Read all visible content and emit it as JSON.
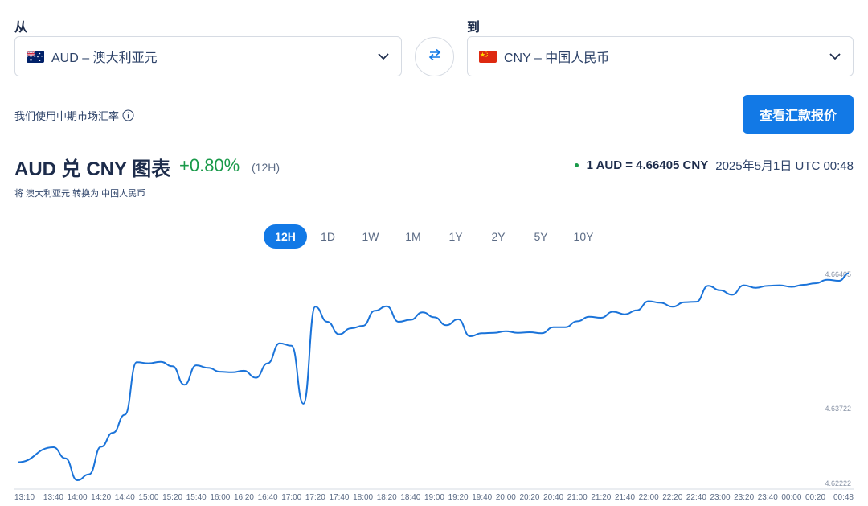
{
  "from": {
    "label": "从",
    "value": "AUD – 澳大利亚元"
  },
  "to": {
    "label": "到",
    "value": "CNY – 中国人民币"
  },
  "disclaimer": "我们使用中期市场汇率",
  "cta_label": "查看汇款报价",
  "chart_header": {
    "title": "AUD 兑 CNY 图表",
    "change": "+0.80%",
    "period": "(12H)",
    "subtitle": "将 澳大利亚元 转换为 中国人民币",
    "rate": "1 AUD = 4.66405 CNY",
    "timestamp": "2025年5月1日 UTC 00:48"
  },
  "ranges": [
    "12H",
    "1D",
    "1W",
    "1M",
    "1Y",
    "2Y",
    "5Y",
    "10Y"
  ],
  "active_range": "12H",
  "colors": {
    "accent": "#1279e6",
    "positive": "#1a9a4a",
    "line": "#1a73d9"
  },
  "chart_data": {
    "type": "line",
    "ylim": [
      4.62222,
      4.66405
    ],
    "yticks": [
      "4.66405",
      "4.63722",
      "4.62222"
    ],
    "xticks": [
      "13:10",
      "13:40",
      "14:00",
      "14:20",
      "14:40",
      "15:00",
      "15:20",
      "15:40",
      "16:00",
      "16:20",
      "16:40",
      "17:00",
      "17:20",
      "17:40",
      "18:00",
      "18:20",
      "18:40",
      "19:00",
      "19:20",
      "19:40",
      "20:00",
      "20:20",
      "20:40",
      "21:00",
      "21:20",
      "21:40",
      "22:00",
      "22:20",
      "22:40",
      "23:00",
      "23:20",
      "23:40",
      "00:00",
      "00:20",
      "00:48"
    ],
    "series": [
      {
        "x": [
          "13:10",
          "13:40",
          "13:50",
          "14:00",
          "14:10",
          "14:20",
          "14:30",
          "14:40",
          "14:50",
          "15:00",
          "15:10",
          "15:20",
          "15:30",
          "15:40",
          "15:50",
          "16:00",
          "16:10",
          "16:20",
          "16:30",
          "16:40",
          "16:50",
          "17:00",
          "17:10",
          "17:20",
          "17:30",
          "17:40",
          "17:50",
          "18:00",
          "18:10",
          "18:20",
          "18:30",
          "18:40",
          "18:50",
          "19:00",
          "19:10",
          "19:20",
          "19:30",
          "19:40",
          "19:50",
          "20:00",
          "20:10",
          "20:20",
          "20:30",
          "20:40",
          "20:50",
          "21:00",
          "21:10",
          "21:20",
          "21:30",
          "21:40",
          "21:50",
          "22:00",
          "22:10",
          "22:20",
          "22:30",
          "22:40",
          "22:50",
          "23:00",
          "23:10",
          "23:20",
          "23:30",
          "23:40",
          "23:50",
          "00:00",
          "00:10",
          "00:20",
          "00:30",
          "00:40",
          "00:48"
        ],
        "values": [
          4.6263,
          4.6293,
          4.6271,
          4.6227,
          4.6239,
          4.6294,
          4.6322,
          4.6358,
          4.6463,
          4.6461,
          4.6464,
          4.6455,
          4.6418,
          4.6457,
          4.6452,
          4.6444,
          4.6443,
          4.6446,
          4.6432,
          4.6461,
          4.6501,
          4.6496,
          4.638,
          4.6574,
          4.6544,
          4.6519,
          4.6531,
          4.6536,
          4.6566,
          4.6575,
          4.6544,
          4.6548,
          4.6563,
          4.6553,
          4.6537,
          4.6549,
          4.6515,
          4.6521,
          4.6522,
          4.6525,
          4.6522,
          4.6523,
          4.6521,
          4.6533,
          4.6533,
          4.6545,
          4.6554,
          4.6552,
          4.6564,
          4.6559,
          4.6567,
          4.6585,
          4.6582,
          4.6574,
          4.6583,
          4.6584,
          4.6616,
          4.6607,
          4.6598,
          4.6617,
          4.6612,
          4.6616,
          4.6617,
          4.6614,
          4.6618,
          4.6621,
          4.6628,
          4.6626,
          4.6641
        ]
      }
    ]
  }
}
